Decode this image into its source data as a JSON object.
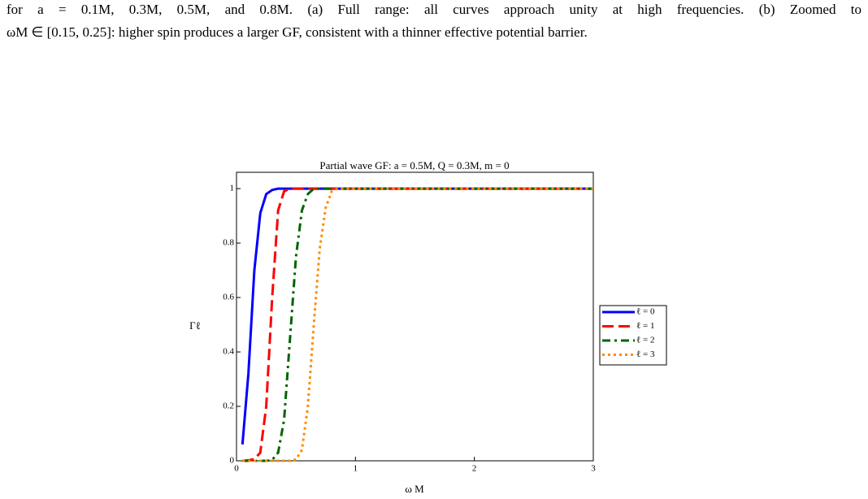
{
  "caption": [
    "for a = 0.1M, 0.3M, 0.5M, and 0.8M. (a) Full range: all curves approach unity at high frequencies. (b) Zoomed to",
    "ωM ∈ [0.15, 0.25]: higher spin produces a larger GF, consistent with a thinner effective potential barrier."
  ],
  "chart_data": {
    "type": "line",
    "title": "Partial wave GF: a = 0.5M, Q = 0.3M, m = 0",
    "x_label": "ω M",
    "y_label": "Γℓ",
    "x": [
      0.05,
      0.1,
      0.15,
      0.2,
      0.25,
      0.3,
      0.35,
      0.4,
      0.45,
      0.5,
      0.55,
      0.6,
      0.65,
      0.7,
      0.75,
      0.8,
      0.85,
      0.9,
      1,
      1.5,
      2,
      2.5,
      3
    ],
    "series": [
      {
        "name": "ℓ = 0",
        "color": "#0000ff",
        "dash": "solid",
        "values": [
          0.06,
          0.32,
          0.7,
          0.91,
          0.98,
          0.995,
          1,
          1,
          1,
          1,
          1,
          1,
          1,
          1,
          1,
          1,
          1,
          1,
          1,
          1,
          1,
          1,
          1
        ]
      },
      {
        "name": "ℓ = 1",
        "color": "#ff0000",
        "dash": "dashed",
        "values": [
          0,
          0.002,
          0.006,
          0.03,
          0.2,
          0.6,
          0.92,
          0.99,
          1,
          1,
          1,
          1,
          1,
          1,
          1,
          1,
          1,
          1,
          1,
          1,
          1,
          1,
          1
        ]
      },
      {
        "name": "ℓ = 2",
        "color": "#006400",
        "dash": "dashdot",
        "values": [
          0,
          0,
          0,
          0,
          0,
          0.003,
          0.03,
          0.15,
          0.45,
          0.75,
          0.92,
          0.98,
          1,
          1,
          1,
          1,
          1,
          1,
          1,
          1,
          1,
          1,
          1
        ]
      },
      {
        "name": "ℓ = 3",
        "color": "#ff8c00",
        "dash": "dotted",
        "values": [
          0,
          0,
          0,
          0,
          0,
          0,
          0,
          0,
          0,
          0.005,
          0.04,
          0.2,
          0.5,
          0.78,
          0.93,
          0.99,
          1,
          1,
          1,
          1,
          1,
          1,
          1
        ]
      }
    ],
    "xlim": [
      0,
      3
    ],
    "xticks": [
      0,
      1,
      2,
      3
    ],
    "ylim": [
      0,
      1.06
    ],
    "yticks": [
      0,
      0.2,
      0.4,
      0.6,
      0.8,
      1
    ],
    "legend": "right"
  }
}
